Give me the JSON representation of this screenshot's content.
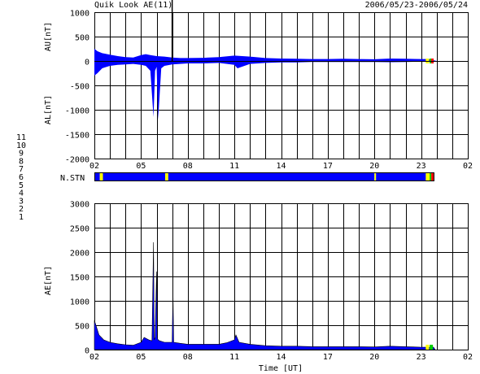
{
  "header": {
    "title": "Quik Look AE(11)",
    "date_range": "2006/05/23-2006/05/24"
  },
  "colors": {
    "blue": "#0000ff",
    "yellow": "#ffff00",
    "green": "#00cc00",
    "red": "#ff0000",
    "black": "#000000"
  },
  "station_legend": {
    "labels": [
      "11",
      "10",
      "9",
      "8",
      "7",
      "6",
      "5",
      "4",
      "3",
      "2",
      "1"
    ],
    "colors": [
      "#00c0c0",
      "#ff00ff",
      "#0000c0",
      "#e0e000",
      "#00c000",
      "#ff0000",
      "#c0c0c0",
      "#808080",
      "#00a0a0",
      "#c000c0",
      "#0000ff"
    ]
  },
  "chart_data": [
    {
      "type": "area",
      "name": "upper",
      "ylabel_top": "AU[nT]",
      "ylabel_bottom": "AL[nT]",
      "ylim": [
        -2000,
        1000
      ],
      "yticks": [
        "1000",
        "500",
        "0",
        "-500",
        "-1000",
        "-1500",
        "-2000"
      ],
      "xticks": [
        "02",
        "05",
        "08",
        "11",
        "14",
        "17",
        "20",
        "23",
        "02"
      ],
      "xlim_hours": [
        2,
        26
      ],
      "au": {
        "x": [
          2.0,
          2.2,
          2.5,
          3.0,
          3.5,
          4.0,
          4.5,
          5.0,
          5.3,
          5.6,
          6.0,
          6.5,
          7.0,
          7.5,
          8.0,
          9.0,
          10.0,
          11.0,
          12.0,
          13.0,
          14.0,
          15.0,
          16.0,
          17.0,
          18.0,
          19.0,
          20.0,
          21.0,
          22.0,
          23.0,
          23.5,
          24.0
        ],
        "y": [
          250,
          200,
          160,
          130,
          100,
          80,
          70,
          120,
          140,
          120,
          100,
          90,
          70,
          60,
          60,
          65,
          80,
          110,
          90,
          60,
          50,
          45,
          40,
          40,
          45,
          40,
          35,
          50,
          45,
          40,
          40,
          0
        ]
      },
      "al": {
        "x": [
          2.0,
          2.2,
          2.5,
          3.0,
          3.5,
          4.0,
          4.5,
          5.0,
          5.3,
          5.6,
          5.8,
          5.9,
          6.0,
          6.1,
          6.3,
          6.5,
          7.0,
          7.5,
          8.0,
          9.0,
          10.0,
          11.0,
          11.2,
          12.0,
          13.0,
          14.0,
          15.0,
          16.0,
          17.0,
          18.0,
          19.0,
          20.0,
          21.0,
          22.0,
          23.0,
          23.5,
          24.0
        ],
        "y": [
          -300,
          -250,
          -150,
          -100,
          -80,
          -70,
          -60,
          -80,
          -100,
          -200,
          -1150,
          -200,
          -120,
          -1200,
          -150,
          -100,
          -70,
          -60,
          -50,
          -50,
          -40,
          -80,
          -150,
          -60,
          -40,
          -30,
          -30,
          -20,
          -20,
          -20,
          -20,
          -20,
          -25,
          -20,
          -15,
          -15,
          0
        ]
      },
      "spike": {
        "x": 7.0,
        "y": 1000
      }
    },
    {
      "type": "bar",
      "name": "station_strip",
      "label": "N.STN",
      "segments": [
        {
          "from": 2.0,
          "to": 2.35,
          "color": "#0000ff"
        },
        {
          "from": 2.35,
          "to": 2.55,
          "color": "#ffff00"
        },
        {
          "from": 2.55,
          "to": 6.55,
          "color": "#0000ff"
        },
        {
          "from": 6.55,
          "to": 6.75,
          "color": "#ffff00"
        },
        {
          "from": 6.75,
          "to": 20.0,
          "color": "#0000ff"
        },
        {
          "from": 20.0,
          "to": 20.1,
          "color": "#ffff00"
        },
        {
          "from": 20.1,
          "to": 23.3,
          "color": "#0000ff"
        },
        {
          "from": 23.3,
          "to": 23.55,
          "color": "#ffff00"
        },
        {
          "from": 23.55,
          "to": 23.65,
          "color": "#00cc00"
        },
        {
          "from": 23.65,
          "to": 23.8,
          "color": "#ff0000"
        }
      ]
    },
    {
      "type": "area",
      "name": "lower",
      "ylabel": "AE[nT]",
      "ylim": [
        0,
        3000
      ],
      "yticks": [
        "3000",
        "2500",
        "2000",
        "1500",
        "1000",
        "500",
        "0"
      ],
      "xticks": [
        "02",
        "05",
        "08",
        "11",
        "14",
        "17",
        "20",
        "23",
        "02"
      ],
      "xlabel": "Time [UT]",
      "xlim_hours": [
        2,
        26
      ],
      "ae": {
        "x": [
          2.0,
          2.1,
          2.3,
          2.6,
          3.0,
          3.5,
          4.0,
          4.5,
          5.0,
          5.2,
          5.5,
          5.7,
          5.8,
          5.85,
          5.9,
          6.0,
          6.05,
          6.1,
          6.2,
          6.5,
          7.0,
          7.05,
          7.1,
          7.5,
          8.0,
          9.0,
          10.0,
          10.5,
          11.0,
          11.1,
          11.3,
          12.0,
          13.0,
          14.0,
          15.0,
          16.0,
          17.0,
          18.0,
          19.0,
          20.0,
          21.0,
          22.0,
          23.0,
          23.5,
          23.8,
          23.9
        ],
        "y": [
          600,
          500,
          300,
          200,
          150,
          120,
          100,
          90,
          150,
          250,
          200,
          180,
          2200,
          200,
          250,
          1600,
          230,
          200,
          180,
          150,
          150,
          1200,
          150,
          130,
          110,
          110,
          110,
          140,
          200,
          300,
          150,
          110,
          80,
          70,
          70,
          60,
          60,
          60,
          60,
          55,
          70,
          60,
          50,
          50,
          50,
          0
        ]
      }
    }
  ]
}
